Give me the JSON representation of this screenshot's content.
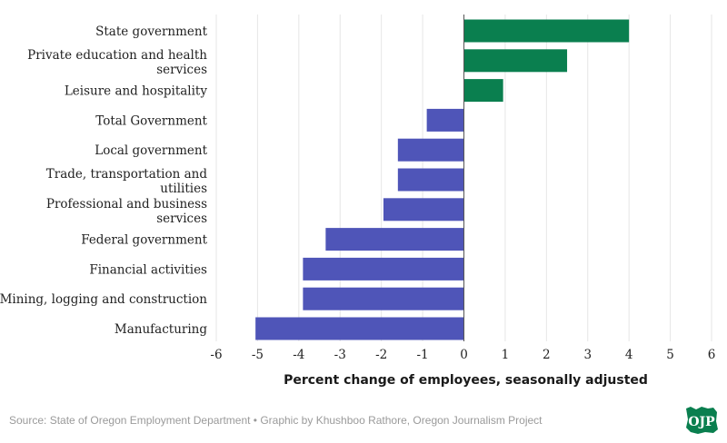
{
  "chart_data": {
    "type": "bar",
    "orientation": "horizontal",
    "categories": [
      "State government",
      "Private education and health services",
      "Leisure and hospitality",
      "Total Government",
      "Local government",
      "Trade, transportation and utilities",
      "Professional and business services",
      "Federal government",
      "Financial activities",
      "Mining, logging and construction",
      "Manufacturing"
    ],
    "values": [
      4.0,
      2.5,
      0.95,
      -0.9,
      -1.6,
      -1.6,
      -1.95,
      -3.35,
      -3.9,
      -3.9,
      -5.05
    ],
    "xlabel": "Percent change of employees, seasonally adjusted",
    "xlim": [
      -6,
      6
    ],
    "xticks": [
      -6,
      -5,
      -4,
      -3,
      -2,
      -1,
      0,
      1,
      2,
      3,
      4,
      5,
      6
    ],
    "grid": "vertical",
    "colors": {
      "positive": "#0a7f4f",
      "negative": "#4f55b8",
      "grid": "#e6e6e6",
      "zero_line": "#555555"
    }
  },
  "footer": {
    "source": "Source: State of Oregon Employment Department • Graphic by Khushboo Rathore, Oregon Journalism Project",
    "logo_text": "OJP"
  }
}
